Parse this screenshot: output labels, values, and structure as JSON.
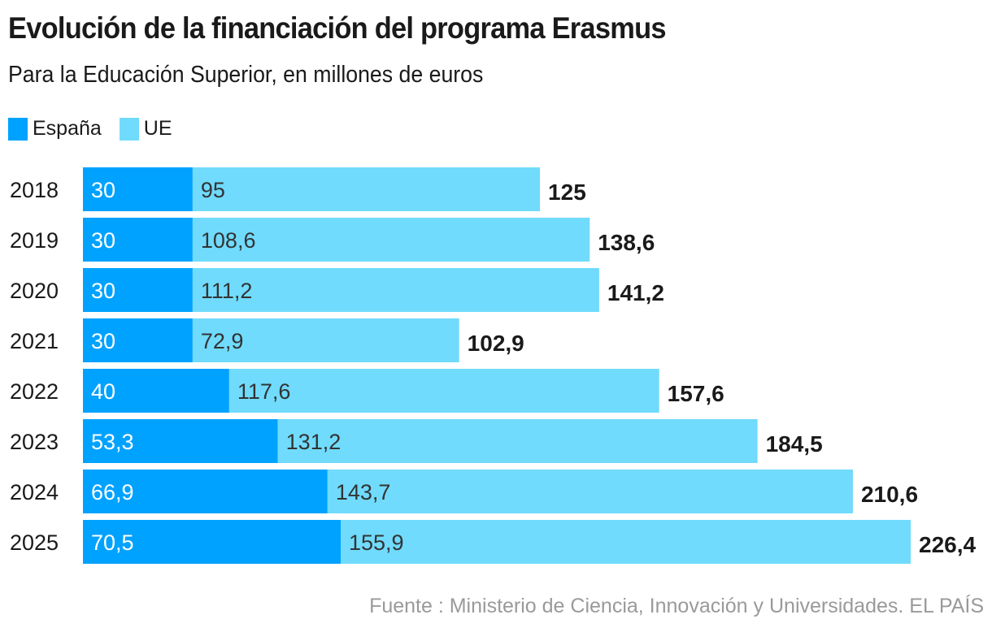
{
  "header": {
    "title": "Evolución de la financiación del programa Erasmus",
    "subtitle": "Para la Educación Superior, en millones de euros"
  },
  "legend": [
    {
      "label": "España",
      "color": "#00a2ff"
    },
    {
      "label": "UE",
      "color": "#70dbfc"
    }
  ],
  "source": "Fuente : Ministerio de Ciencia, Innovación y Universidades. EL PAÍS",
  "chart_data": {
    "type": "bar",
    "orientation": "horizontal",
    "stacked": true,
    "title": "Evolución de la financiación del programa Erasmus",
    "subtitle": "Para la Educación Superior, en millones de euros",
    "xlabel": "",
    "ylabel": "",
    "legend_position": "top-left",
    "grid": false,
    "categories": [
      "2018",
      "2019",
      "2020",
      "2021",
      "2022",
      "2023",
      "2024",
      "2025"
    ],
    "series": [
      {
        "name": "España",
        "color": "#00a2ff",
        "values": [
          30,
          30,
          30,
          30,
          40,
          53.3,
          66.9,
          70.5
        ],
        "labels": [
          "30",
          "30",
          "30",
          "30",
          "40",
          "53,3",
          "66,9",
          "70,5"
        ]
      },
      {
        "name": "UE",
        "color": "#70dbfc",
        "values": [
          95,
          108.6,
          111.2,
          72.9,
          117.6,
          131.2,
          143.7,
          155.9
        ],
        "labels": [
          "95",
          "108,6",
          "111,2",
          "72,9",
          "117,6",
          "131,2",
          "143,7",
          "155,9"
        ]
      }
    ],
    "totals": [
      125,
      138.6,
      141.2,
      102.9,
      157.6,
      184.5,
      210.6,
      226.4
    ],
    "total_labels": [
      "125",
      "138,6",
      "141,2",
      "102,9",
      "157,6",
      "184,5",
      "210,6",
      "226,4"
    ],
    "xlim": [
      0,
      226.4
    ]
  }
}
